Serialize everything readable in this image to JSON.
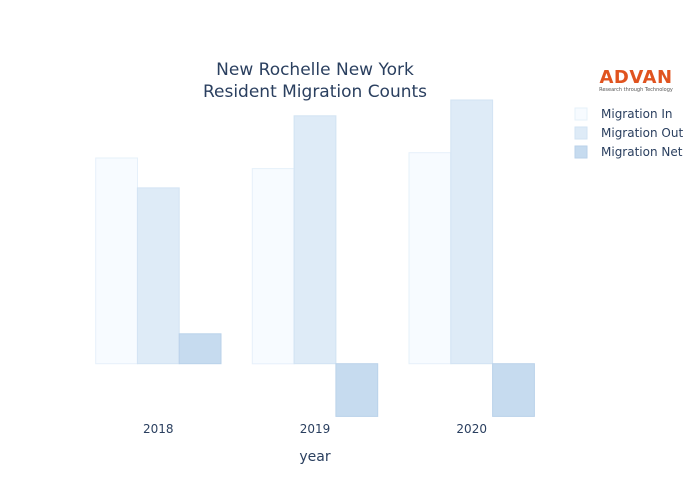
{
  "logo": {
    "name": "ADVAN",
    "tagline": "Research through Technology",
    "color": "#e0531f"
  },
  "chart_data": {
    "type": "bar",
    "title": "New Rochelle New York",
    "subtitle": "Resident Migration Counts",
    "xlabel": "year",
    "ylabel": "",
    "categories": [
      "2018",
      "2019",
      "2020"
    ],
    "ylim": [
      -32,
      150
    ],
    "grid": false,
    "y_ticks_visible": false,
    "legend_position": "top-right",
    "series": [
      {
        "name": "Migration In",
        "color": "#f7fbff",
        "stroke": "#e6f0fa",
        "values": [
          117,
          111,
          120
        ]
      },
      {
        "name": "Migration Out",
        "color": "#deebf7",
        "stroke": "#d2e3f3",
        "values": [
          100,
          141,
          150
        ]
      },
      {
        "name": "Migration Net",
        "color": "#c6dbef",
        "stroke": "#bad2ea",
        "values": [
          17,
          -30,
          -30
        ]
      }
    ]
  }
}
